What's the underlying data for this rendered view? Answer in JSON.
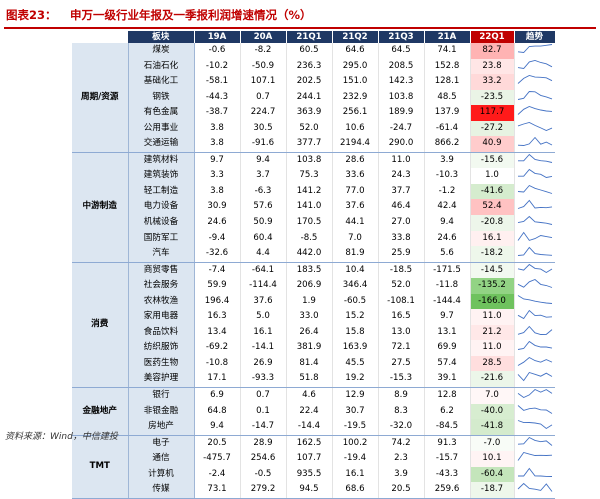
{
  "title": {
    "label": "图表23：",
    "text": "申万一级行业年报及一季报利润增速情况（%）"
  },
  "table": {
    "headers": [
      "板块",
      "19A",
      "20A",
      "21Q1",
      "21Q2",
      "21Q3",
      "21A",
      "22Q1",
      "趋势"
    ],
    "groups": [
      {
        "sector": "周期/资源",
        "rows": [
          {
            "industry": "煤炭",
            "values": [
              "-0.6",
              "-8.2",
              "60.5",
              "64.6",
              "64.5",
              "74.1",
              "82.7"
            ],
            "color": "#ffb3b3"
          },
          {
            "industry": "石油石化",
            "values": [
              "-10.2",
              "-50.9",
              "236.3",
              "295.0",
              "208.5",
              "152.8",
              "23.8"
            ],
            "color": "#ffe6e6"
          },
          {
            "industry": "基础化工",
            "values": [
              "-58.1",
              "107.1",
              "202.5",
              "151.0",
              "142.3",
              "128.1",
              "33.2"
            ],
            "color": "#ffd9d9"
          },
          {
            "industry": "钢铁",
            "values": [
              "-44.3",
              "0.7",
              "244.1",
              "232.9",
              "103.8",
              "48.5",
              "-23.5"
            ],
            "color": "#eaf4e6"
          },
          {
            "industry": "有色金属",
            "values": [
              "-38.7",
              "224.7",
              "363.9",
              "256.1",
              "189.9",
              "137.9",
              "117.7"
            ],
            "color": "#ff1a1a"
          },
          {
            "industry": "公用事业",
            "values": [
              "3.8",
              "30.5",
              "52.0",
              "10.6",
              "-24.7",
              "-61.4",
              "-27.2"
            ],
            "color": "#e7f3e2"
          },
          {
            "industry": "交通运输",
            "values": [
              "3.8",
              "-91.6",
              "377.7",
              "2194.4",
              "290.0",
              "866.2",
              "40.9"
            ],
            "color": "#ffcccc"
          }
        ]
      },
      {
        "sector": "中游制造",
        "rows": [
          {
            "industry": "建筑材料",
            "values": [
              "9.7",
              "9.4",
              "103.8",
              "28.6",
              "11.0",
              "3.9",
              "-15.6"
            ],
            "color": "#f2f9f0"
          },
          {
            "industry": "建筑装饰",
            "values": [
              "3.3",
              "3.7",
              "75.3",
              "33.6",
              "24.3",
              "-10.3",
              "1.0"
            ],
            "color": "#ffffff"
          },
          {
            "industry": "轻工制造",
            "values": [
              "3.8",
              "-6.3",
              "141.2",
              "77.0",
              "37.7",
              "-1.2",
              "-41.6"
            ],
            "color": "#d5ecce"
          },
          {
            "industry": "电力设备",
            "values": [
              "30.9",
              "57.6",
              "141.0",
              "37.6",
              "46.4",
              "42.4",
              "52.4"
            ],
            "color": "#ffc2c2"
          },
          {
            "industry": "机械设备",
            "values": [
              "24.6",
              "50.9",
              "170.5",
              "44.1",
              "27.0",
              "9.4",
              "-20.8"
            ],
            "color": "#edf6ea"
          },
          {
            "industry": "国防军工",
            "values": [
              "-9.4",
              "60.4",
              "-8.5",
              "7.0",
              "33.8",
              "24.6",
              "16.1"
            ],
            "color": "#fff0f0"
          },
          {
            "industry": "汽车",
            "values": [
              "-32.6",
              "4.4",
              "442.0",
              "81.9",
              "25.9",
              "5.6",
              "-18.2"
            ],
            "color": "#eef7eb"
          }
        ]
      },
      {
        "sector": "消费",
        "rows": [
          {
            "industry": "商贸零售",
            "values": [
              "-7.4",
              "-64.1",
              "183.5",
              "10.4",
              "-18.5",
              "-171.5",
              "-14.5"
            ],
            "color": "#f2f9f0"
          },
          {
            "industry": "社会服务",
            "values": [
              "59.9",
              "-114.4",
              "206.9",
              "346.4",
              "52.0",
              "-11.8",
              "-135.2"
            ],
            "color": "#92d384"
          },
          {
            "industry": "农林牧渔",
            "values": [
              "196.4",
              "37.6",
              "1.9",
              "-60.5",
              "-108.1",
              "-144.4",
              "-166.0"
            ],
            "color": "#6fc25e"
          },
          {
            "industry": "家用电器",
            "values": [
              "16.3",
              "5.0",
              "33.0",
              "15.2",
              "16.5",
              "9.7",
              "11.0"
            ],
            "color": "#fff3f3"
          },
          {
            "industry": "食品饮料",
            "values": [
              "13.4",
              "16.1",
              "26.4",
              "15.8",
              "13.0",
              "13.1",
              "21.2"
            ],
            "color": "#ffe8e8"
          },
          {
            "industry": "纺织服饰",
            "values": [
              "-69.2",
              "-14.1",
              "381.9",
              "163.9",
              "72.1",
              "69.9",
              "11.0"
            ],
            "color": "#fff3f3"
          },
          {
            "industry": "医药生物",
            "values": [
              "-10.8",
              "26.9",
              "81.4",
              "45.5",
              "27.5",
              "57.4",
              "28.5"
            ],
            "color": "#ffdede"
          },
          {
            "industry": "美容护理",
            "values": [
              "17.1",
              "-93.3",
              "51.8",
              "19.2",
              "-15.3",
              "39.1",
              "-21.6"
            ],
            "color": "#ecf6e9"
          }
        ]
      },
      {
        "sector": "金融地产",
        "rows": [
          {
            "industry": "银行",
            "values": [
              "6.9",
              "0.7",
              "4.6",
              "12.9",
              "8.9",
              "12.8",
              "7.0"
            ],
            "color": "#fff7f7"
          },
          {
            "industry": "非银金融",
            "values": [
              "64.8",
              "0.1",
              "22.4",
              "30.7",
              "8.3",
              "6.2",
              "-40.0"
            ],
            "color": "#d7edd0"
          },
          {
            "industry": "房地产",
            "values": [
              "9.4",
              "-14.7",
              "-14.4",
              "-19.5",
              "-32.0",
              "-84.5",
              "-41.8"
            ],
            "color": "#d4ebcd"
          }
        ]
      },
      {
        "sector": "TMT",
        "rows": [
          {
            "industry": "电子",
            "values": [
              "20.5",
              "28.9",
              "162.5",
              "100.2",
              "74.2",
              "91.3",
              "-7.0"
            ],
            "color": "#f8fcf7"
          },
          {
            "industry": "通信",
            "values": [
              "-475.7",
              "254.6",
              "107.7",
              "-19.4",
              "2.3",
              "-15.7",
              "10.1"
            ],
            "color": "#fff4f4"
          },
          {
            "industry": "计算机",
            "values": [
              "-2.4",
              "-0.5",
              "935.5",
              "16.1",
              "3.9",
              "-43.3",
              "-60.4"
            ],
            "color": "#c4e5bb"
          },
          {
            "industry": "传媒",
            "values": [
              "73.1",
              "279.2",
              "94.5",
              "68.6",
              "20.5",
              "259.6",
              "-18.7"
            ],
            "color": "#eef7eb"
          }
        ]
      }
    ]
  },
  "source": "资料来源：Wind，中信建投"
}
